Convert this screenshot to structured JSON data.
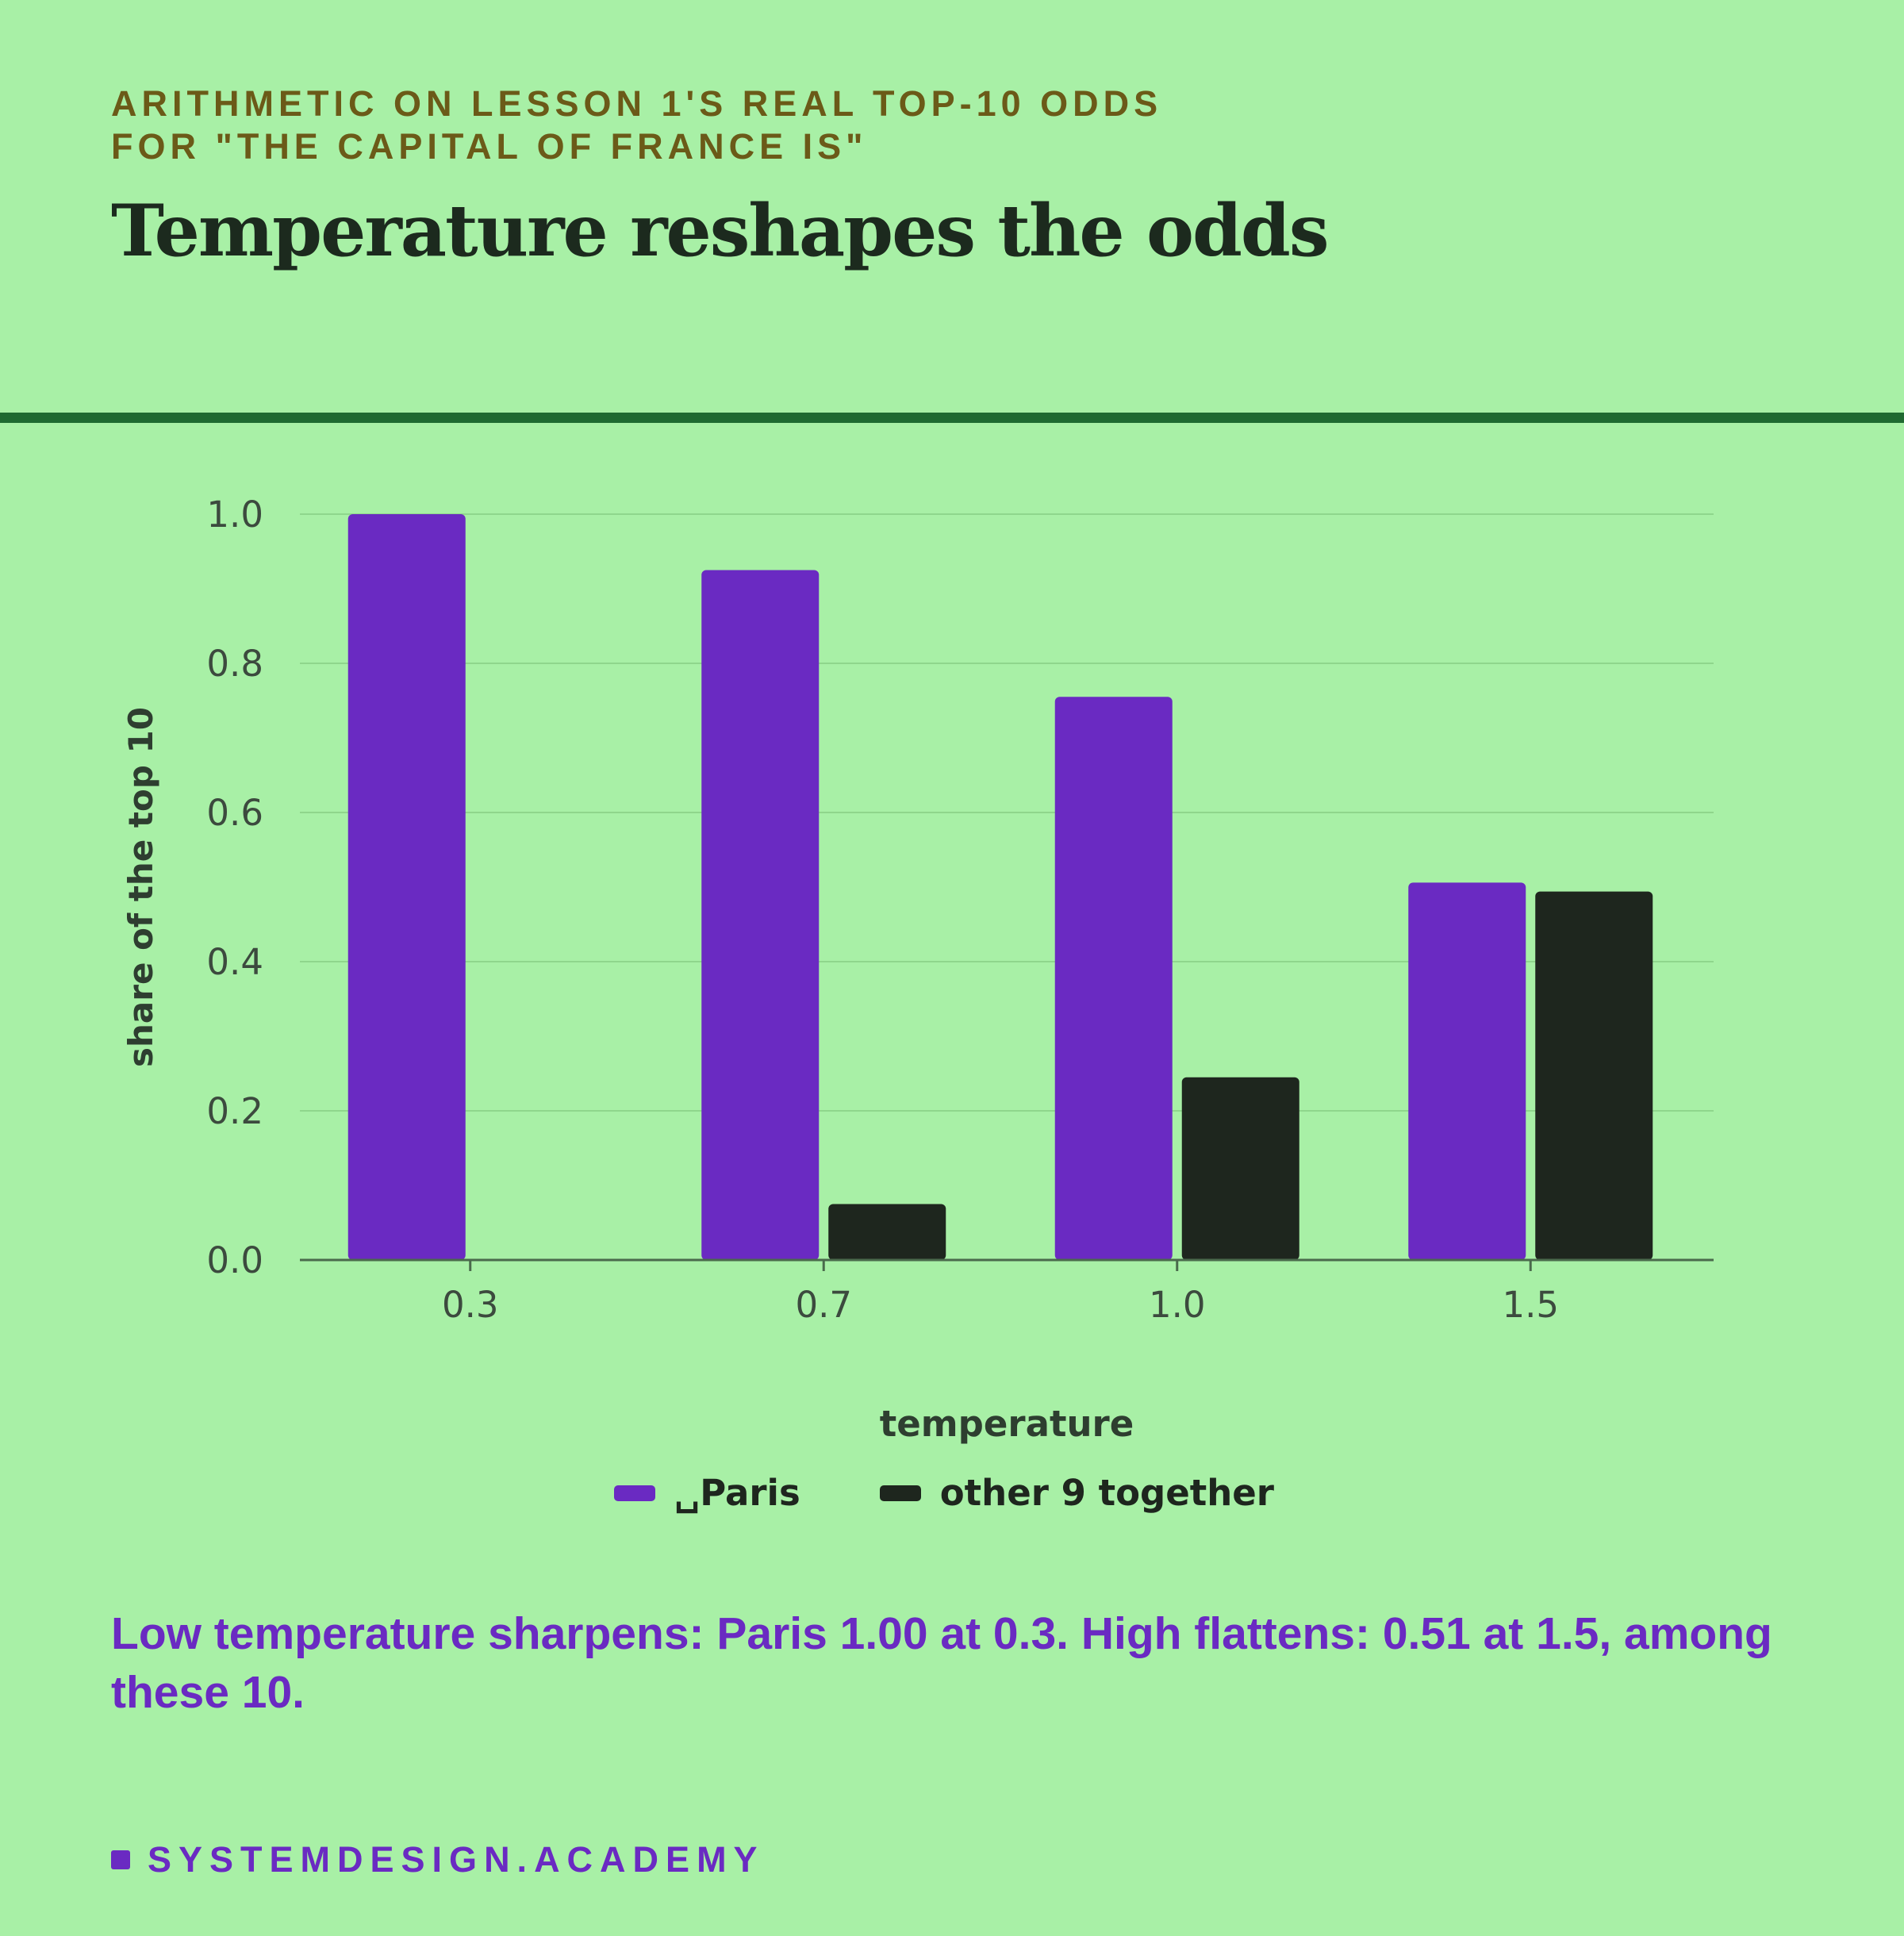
{
  "header": {
    "eyebrow_line1": "ARITHMETIC ON LESSON 1'S REAL TOP-10 ODDS",
    "eyebrow_line2": "FOR \"THE CAPITAL OF FRANCE IS\"",
    "title": "Temperature reshapes the odds"
  },
  "chart_data": {
    "type": "bar",
    "categories": [
      "0.3",
      "0.7",
      "1.0",
      "1.5"
    ],
    "series": [
      {
        "name": "␣Paris",
        "values": [
          1.0,
          0.925,
          0.755,
          0.506
        ],
        "color": "#6a2ac2"
      },
      {
        "name": "other 9 together",
        "values": [
          0.0,
          0.075,
          0.245,
          0.494
        ],
        "color": "#1e261e"
      }
    ],
    "xlabel": "temperature",
    "ylabel": "share of the top 10",
    "ylim": [
      0,
      1
    ],
    "yticks": [
      "0.0",
      "0.2",
      "0.4",
      "0.6",
      "0.8",
      "1.0"
    ],
    "grid": true,
    "legend": "bottom-center"
  },
  "caption": "Low temperature sharpens: Paris 1.00 at 0.3. High flattens: 0.51 at 1.5, among these 10.",
  "brand": "SYSTEMDESIGN.ACADEMY"
}
